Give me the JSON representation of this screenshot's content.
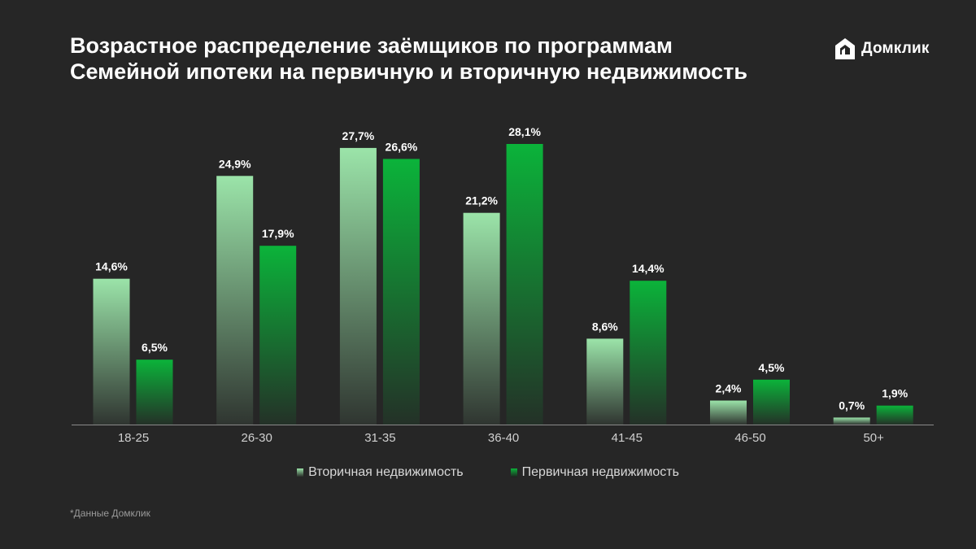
{
  "header": {
    "title_line1": "Возрастное распределение заёмщиков по программам",
    "title_line2": "Семейной ипотеки на первичную и вторичную недвижимость"
  },
  "logo": {
    "text": "Домклик",
    "icon": "house-icon"
  },
  "footnote": "*Данные Домклик",
  "colors": {
    "background": "#262626",
    "secondary_top": "#9be4a9",
    "primary_top": "#0bb33a",
    "axis": "#8a8a8a"
  },
  "chart_data": {
    "type": "bar",
    "categories": [
      "18-25",
      "26-30",
      "31-35",
      "36-40",
      "41-45",
      "46-50",
      "50+"
    ],
    "series": [
      {
        "name": "Вторичная недвижимость",
        "values": [
          14.6,
          24.9,
          27.7,
          21.2,
          8.6,
          2.4,
          0.7
        ],
        "labels": [
          "14,6%",
          "24,9%",
          "27,7%",
          "21,2%",
          "8,6%",
          "2,4%",
          "0,7%"
        ],
        "color": "#9be4a9"
      },
      {
        "name": "Первичная недвижимость",
        "values": [
          6.5,
          17.9,
          26.6,
          28.1,
          14.4,
          4.5,
          1.9
        ],
        "labels": [
          "6,5%",
          "17,9%",
          "26,6%",
          "28,1%",
          "14,4%",
          "4,5%",
          "1,9%"
        ],
        "color": "#0bb33a"
      }
    ],
    "title": "",
    "xlabel": "",
    "ylabel": "",
    "ylim": [
      0,
      28.1
    ],
    "grid": false,
    "legend": "bottom"
  }
}
